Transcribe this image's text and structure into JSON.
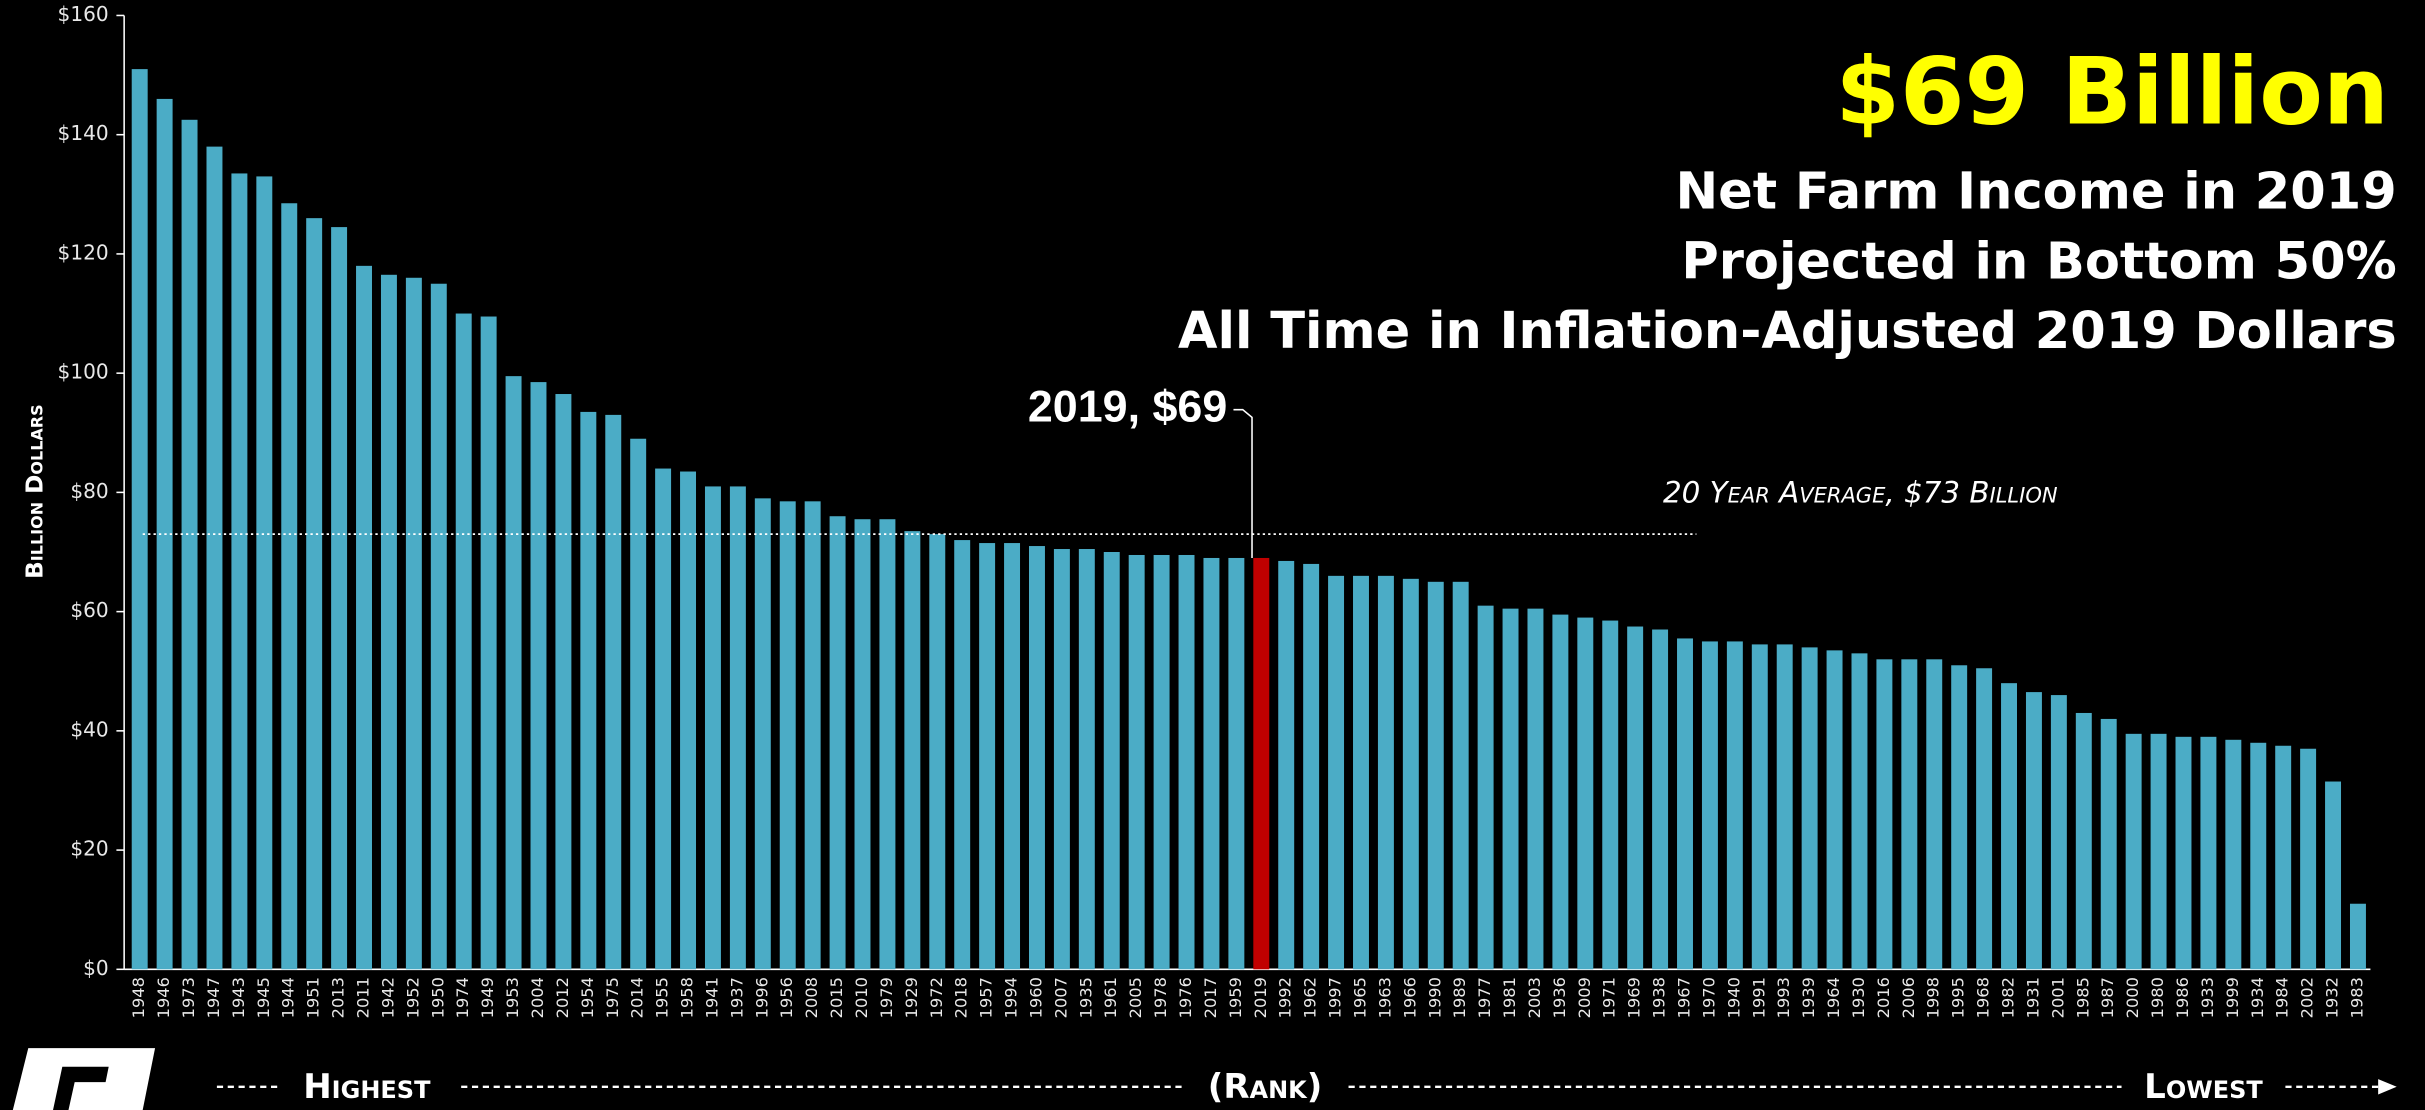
{
  "chart_data": {
    "type": "bar",
    "title": "$69 Billion",
    "subtitle": [
      "Net Farm Income in 2019",
      "Projected in Bottom 50%",
      "All Time in Inflation-Adjusted 2019 Dollars"
    ],
    "ylabel": "Billion Dollars",
    "annotation": "2019, $69",
    "rank_labels": [
      "Highest",
      "(Rank)",
      "Lowest"
    ],
    "categories": [
      "1948",
      "1946",
      "1973",
      "1947",
      "1943",
      "1945",
      "1944",
      "1951",
      "2013",
      "2011",
      "1942",
      "1952",
      "1950",
      "1974",
      "1949",
      "1953",
      "2004",
      "2012",
      "1954",
      "1975",
      "2014",
      "1955",
      "1958",
      "1941",
      "1937",
      "1996",
      "1956",
      "2008",
      "2015",
      "2010",
      "1979",
      "1929",
      "1972",
      "2018",
      "1957",
      "1994",
      "1960",
      "2007",
      "1935",
      "1961",
      "2005",
      "1978",
      "1976",
      "2017",
      "1959",
      "2019",
      "1992",
      "1962",
      "1997",
      "1965",
      "1963",
      "1966",
      "1990",
      "1989",
      "1977",
      "1981",
      "2003",
      "1936",
      "2009",
      "1971",
      "1969",
      "1938",
      "1967",
      "1970",
      "1940",
      "1991",
      "1993",
      "1939",
      "1964",
      "1930",
      "2016",
      "2006",
      "1998",
      "1995",
      "1968",
      "1982",
      "1931",
      "2001",
      "1985",
      "1987",
      "2000",
      "1980",
      "1986",
      "1933",
      "1999",
      "1934",
      "1984",
      "2002",
      "1932",
      "1983"
    ],
    "values": [
      151,
      146,
      142.5,
      138,
      133.5,
      133,
      128.5,
      126,
      124.5,
      118,
      116.5,
      116,
      115,
      110,
      109.5,
      99.5,
      98.5,
      96.5,
      93.5,
      93,
      89,
      84,
      83.5,
      81,
      81,
      79,
      78.5,
      78.5,
      76,
      75.5,
      75.5,
      73.5,
      73,
      72,
      71.5,
      71.5,
      71,
      70.5,
      70.5,
      70,
      69.5,
      69.5,
      69.5,
      69,
      69,
      69,
      68.5,
      68,
      66,
      66,
      66,
      65.5,
      65,
      65,
      61,
      60.5,
      60.5,
      59.5,
      59,
      58.5,
      57.5,
      57,
      55.5,
      55,
      55,
      54.5,
      54.5,
      54,
      53.5,
      53,
      52,
      52,
      52,
      51,
      50.5,
      48,
      46.5,
      46,
      43,
      42,
      39.5,
      39.5,
      39,
      39,
      38.5,
      38,
      37.5,
      37,
      31.5,
      11
    ],
    "color": "#4bacc6",
    "highlight": {
      "index": 45,
      "color": "#c00000"
    },
    "average": {
      "value": 73,
      "label": "20 Year Average, $73 Billion"
    },
    "ylim": [
      0,
      160
    ],
    "yticks": [
      {
        "value": 0,
        "label": "$0"
      },
      {
        "value": 20,
        "label": "$20"
      },
      {
        "value": 40,
        "label": "$40"
      },
      {
        "value": 60,
        "label": "$60"
      },
      {
        "value": 80,
        "label": "$80"
      },
      {
        "value": 100,
        "label": "$100"
      },
      {
        "value": 120,
        "label": "$120"
      },
      {
        "value": 140,
        "label": "$140"
      },
      {
        "value": 160,
        "label": "$160"
      }
    ],
    "grid": false
  }
}
